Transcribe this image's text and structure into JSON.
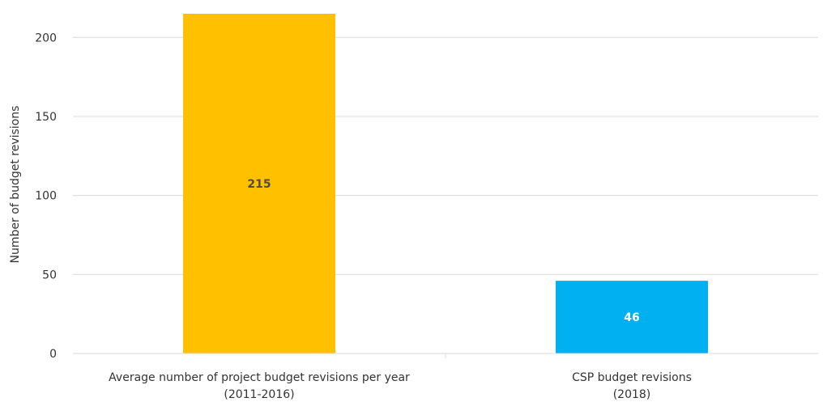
{
  "chart_data": {
    "type": "bar",
    "title": "",
    "xlabel": "",
    "ylabel": "Number of budget revisions",
    "ylim": [
      0,
      215
    ],
    "yticks": [
      0,
      50,
      100,
      150,
      200
    ],
    "grid": true,
    "legend": "none",
    "categories": [
      [
        "Average number of project budget revisions per year",
        "(2011-2016)"
      ],
      [
        "CSP budget revisions",
        "(2018)"
      ]
    ],
    "values": [
      215,
      46
    ],
    "data_labels": [
      "215",
      "46"
    ],
    "colors": [
      "#FFC000",
      "#00B0F0"
    ],
    "data_label_colors": [
      "#4D4D4D",
      "#FFFFFF"
    ]
  }
}
